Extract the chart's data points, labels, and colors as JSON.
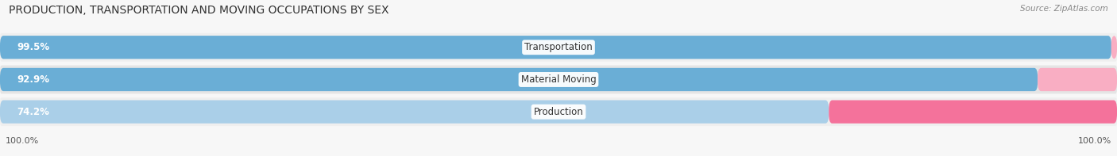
{
  "title": "PRODUCTION, TRANSPORTATION AND MOVING OCCUPATIONS BY SEX",
  "source": "Source: ZipAtlas.com",
  "categories": [
    "Transportation",
    "Material Moving",
    "Production"
  ],
  "male_pct": [
    99.5,
    92.9,
    74.2
  ],
  "female_pct": [
    0.52,
    7.1,
    25.8
  ],
  "male_color_0": "#6aaed6",
  "male_color_1": "#6aaed6",
  "male_color_2": "#aacfe8",
  "female_color_0": "#f9aec3",
  "female_color_1": "#f9aec3",
  "female_color_2": "#f4729b",
  "row_bg_even": "#efefef",
  "row_bg_odd": "#e5e5e5",
  "fig_bg": "#f7f7f7",
  "title_fontsize": 10,
  "source_fontsize": 7.5,
  "label_fontsize": 8.5,
  "pct_fontsize": 8.5,
  "tick_fontsize": 8,
  "bar_height": 0.72,
  "figsize": [
    14.06,
    1.97
  ],
  "dpi": 100
}
